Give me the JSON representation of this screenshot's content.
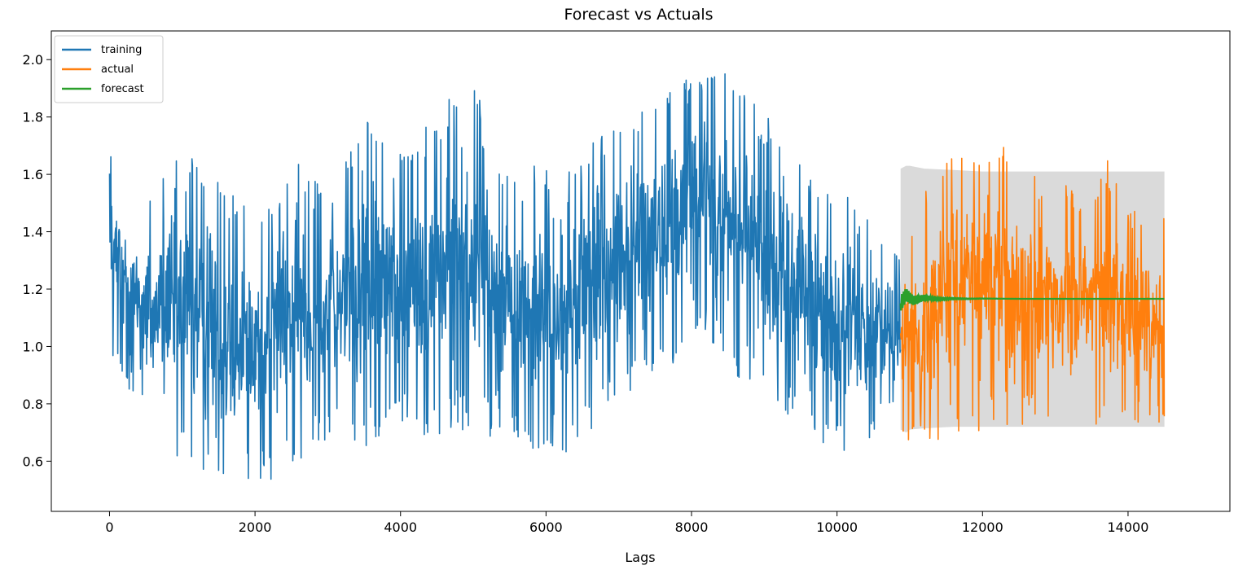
{
  "chart_data": {
    "type": "line",
    "title": "Forecast vs Actuals",
    "xlabel": "Lags",
    "ylabel": "",
    "xlim": [
      -800,
      15400
    ],
    "ylim": [
      0.425,
      2.1
    ],
    "xticks": [
      0,
      2000,
      4000,
      6000,
      8000,
      10000,
      12000,
      14000
    ],
    "yticks": [
      0.6,
      0.8,
      1.0,
      1.2,
      1.4,
      1.6,
      1.8,
      2.0
    ],
    "grid": false,
    "legend_position": "top-left",
    "series": [
      {
        "name": "training",
        "color": "#1f77b4",
        "x_range": [
          0,
          10874
        ],
        "envelope": [
          {
            "x": 0,
            "low": 0.98,
            "high": 1.69
          },
          {
            "x": 500,
            "low": 0.72,
            "high": 1.53
          },
          {
            "x": 1000,
            "low": 0.58,
            "high": 1.74
          },
          {
            "x": 1500,
            "low": 0.5,
            "high": 1.6
          },
          {
            "x": 2000,
            "low": 0.51,
            "high": 1.5
          },
          {
            "x": 2500,
            "low": 0.57,
            "high": 1.66
          },
          {
            "x": 3000,
            "low": 0.68,
            "high": 1.55
          },
          {
            "x": 3500,
            "low": 0.64,
            "high": 1.8
          },
          {
            "x": 4000,
            "low": 0.72,
            "high": 1.7
          },
          {
            "x": 4500,
            "low": 0.65,
            "high": 1.82
          },
          {
            "x": 4750,
            "low": 0.7,
            "high": 1.95
          },
          {
            "x": 5000,
            "low": 0.7,
            "high": 1.92
          },
          {
            "x": 5500,
            "low": 0.67,
            "high": 1.6
          },
          {
            "x": 6000,
            "low": 0.6,
            "high": 1.65
          },
          {
            "x": 6100,
            "low": 0.54,
            "high": 1.55
          },
          {
            "x": 6500,
            "low": 0.68,
            "high": 1.7
          },
          {
            "x": 7000,
            "low": 0.8,
            "high": 1.8
          },
          {
            "x": 7500,
            "low": 0.9,
            "high": 1.85
          },
          {
            "x": 7800,
            "low": 0.95,
            "high": 1.98
          },
          {
            "x": 8200,
            "low": 1.02,
            "high": 2.02
          },
          {
            "x": 8600,
            "low": 0.9,
            "high": 1.92
          },
          {
            "x": 9000,
            "low": 0.8,
            "high": 1.82
          },
          {
            "x": 9500,
            "low": 0.72,
            "high": 1.68
          },
          {
            "x": 10000,
            "low": 0.62,
            "high": 1.55
          },
          {
            "x": 10500,
            "low": 0.66,
            "high": 1.45
          },
          {
            "x": 10874,
            "low": 0.8,
            "high": 1.36
          }
        ]
      },
      {
        "name": "actual",
        "color": "#ff7f0e",
        "x_range": [
          10874,
          14500
        ],
        "envelope": [
          {
            "x": 10874,
            "low": 0.7,
            "high": 1.38
          },
          {
            "x": 11200,
            "low": 0.6,
            "high": 1.55
          },
          {
            "x": 11600,
            "low": 0.68,
            "high": 1.73
          },
          {
            "x": 11900,
            "low": 0.7,
            "high": 1.76
          },
          {
            "x": 12300,
            "low": 0.72,
            "high": 1.72
          },
          {
            "x": 12800,
            "low": 0.72,
            "high": 1.62
          },
          {
            "x": 13300,
            "low": 0.72,
            "high": 1.55
          },
          {
            "x": 13700,
            "low": 0.71,
            "high": 1.66
          },
          {
            "x": 14100,
            "low": 0.72,
            "high": 1.48
          },
          {
            "x": 14500,
            "low": 0.74,
            "high": 1.45
          }
        ]
      },
      {
        "name": "forecast",
        "color": "#2ca02c",
        "x": [
          10874,
          10950,
          11050,
          11200,
          11400,
          11600,
          11800,
          12000,
          12500,
          13000,
          13500,
          14000,
          14500
        ],
        "values": [
          1.15,
          1.18,
          1.16,
          1.17,
          1.165,
          1.167,
          1.166,
          1.167,
          1.166,
          1.166,
          1.166,
          1.166,
          1.166
        ],
        "interval": {
          "color": "#d3d3d3",
          "x": [
            10874,
            10950,
            11000,
            11200,
            11600,
            12000,
            14500
          ],
          "low": [
            0.71,
            0.7,
            0.71,
            0.715,
            0.72,
            0.72,
            0.72
          ],
          "high": [
            1.62,
            1.63,
            1.63,
            1.62,
            1.615,
            1.61,
            1.61
          ]
        }
      }
    ]
  }
}
